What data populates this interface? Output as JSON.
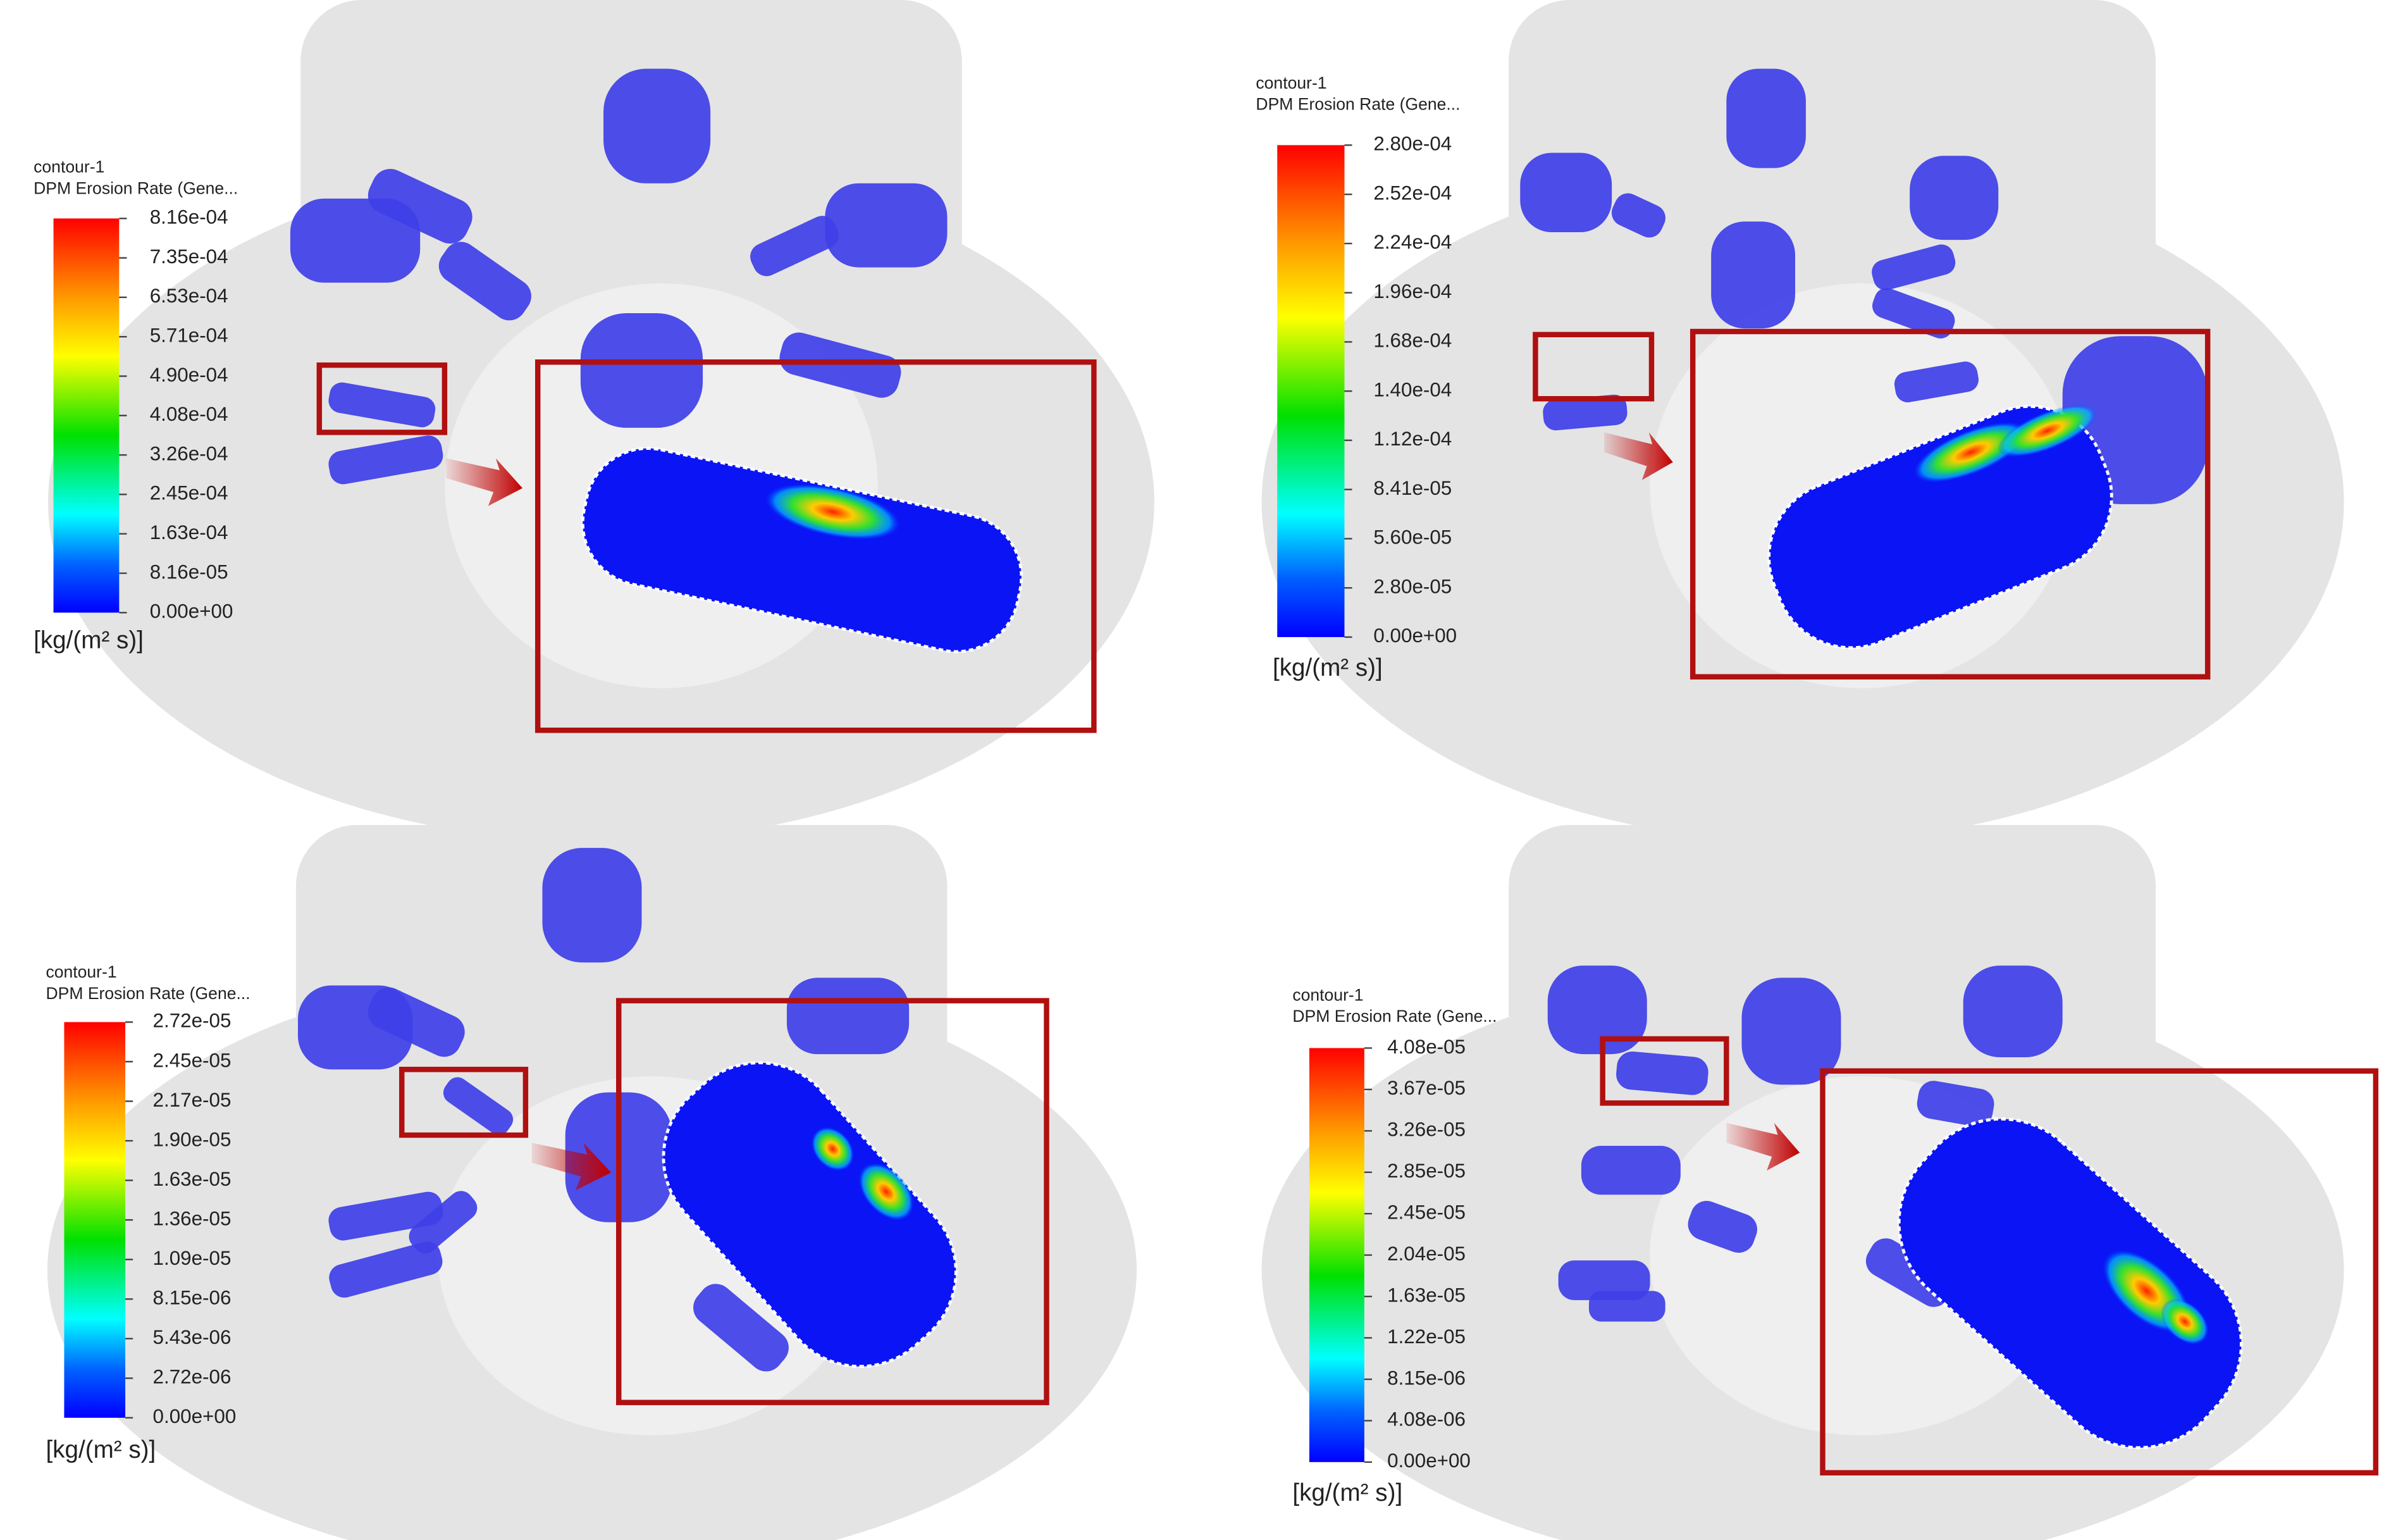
{
  "panels": [
    {
      "legend": {
        "title": "contour-1",
        "subtitle": "DPM Erosion Rate (Gene...",
        "ticks": [
          "8.16e-04",
          "7.35e-04",
          "6.53e-04",
          "5.71e-04",
          "4.90e-04",
          "4.08e-04",
          "3.26e-04",
          "2.45e-04",
          "1.63e-04",
          "8.16e-05",
          "0.00e+00"
        ],
        "units": "[kg/(m² s)]"
      }
    },
    {
      "legend": {
        "title": "contour-1",
        "subtitle": "DPM Erosion Rate (Gene...",
        "ticks": [
          "2.80e-04",
          "2.52e-04",
          "2.24e-04",
          "1.96e-04",
          "1.68e-04",
          "1.40e-04",
          "1.12e-04",
          "8.41e-05",
          "5.60e-05",
          "2.80e-05",
          "0.00e+00"
        ],
        "units": "[kg/(m² s)]"
      }
    },
    {
      "legend": {
        "title": "contour-1",
        "subtitle": "DPM Erosion Rate (Gene...",
        "ticks": [
          "2.72e-05",
          "2.45e-05",
          "2.17e-05",
          "1.90e-05",
          "1.63e-05",
          "1.36e-05",
          "1.09e-05",
          "8.15e-06",
          "5.43e-06",
          "2.72e-06",
          "0.00e+00"
        ],
        "units": "[kg/(m² s)]"
      }
    },
    {
      "legend": {
        "title": "contour-1",
        "subtitle": "DPM Erosion Rate (Gene...",
        "ticks": [
          "4.08e-05",
          "3.67e-05",
          "3.26e-05",
          "2.85e-05",
          "2.45e-05",
          "2.04e-05",
          "1.63e-05",
          "1.22e-05",
          "8.15e-06",
          "4.08e-06",
          "0.00e+00"
        ],
        "units": "[kg/(m² s)]"
      }
    }
  ]
}
